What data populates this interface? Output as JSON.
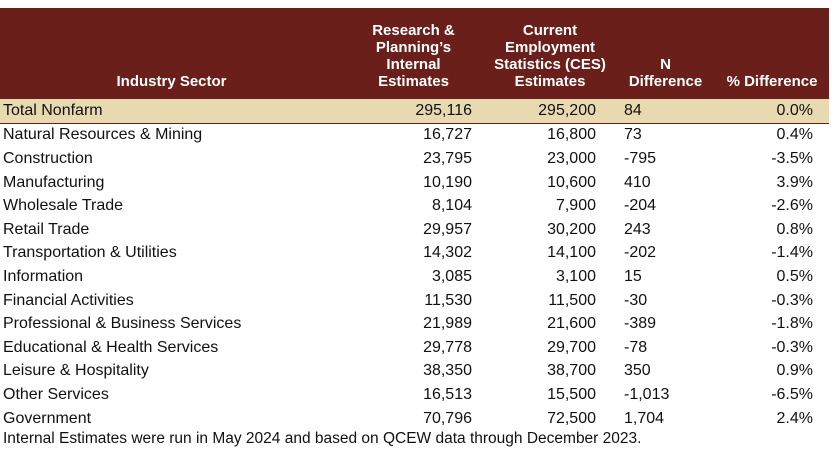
{
  "chart_data": {
    "type": "table",
    "columns": [
      "Industry Sector",
      "Research & Planning’s Internal Estimates",
      "Current Employment Statistics (CES) Estimates",
      "N Difference",
      "% Difference"
    ],
    "rows": [
      [
        "Total Nonfarm",
        "295,116",
        "295,200",
        "84",
        "0.0%"
      ],
      [
        "Natural Resources & Mining",
        "16,727",
        "16,800",
        "73",
        "0.4%"
      ],
      [
        "Construction",
        "23,795",
        "23,000",
        "-795",
        "-3.5%"
      ],
      [
        "Manufacturing",
        "10,190",
        "10,600",
        "410",
        "3.9%"
      ],
      [
        "Wholesale Trade",
        "8,104",
        "7,900",
        "-204",
        "-2.6%"
      ],
      [
        "Retail Trade",
        "29,957",
        "30,200",
        "243",
        "0.8%"
      ],
      [
        "Transportation & Utilities",
        "14,302",
        "14,100",
        "-202",
        "-1.4%"
      ],
      [
        "Information",
        "3,085",
        "3,100",
        "15",
        "0.5%"
      ],
      [
        "Financial Activities",
        "11,530",
        "11,500",
        "-30",
        "-0.3%"
      ],
      [
        "Professional & Business Services",
        "21,989",
        "21,600",
        "-389",
        "-1.8%"
      ],
      [
        "Educational & Health Services",
        "29,778",
        "29,700",
        "-78",
        "-0.3%"
      ],
      [
        "Leisure & Hospitality",
        "38,350",
        "38,700",
        "350",
        "0.9%"
      ],
      [
        "Other Services",
        "16,513",
        "15,500",
        "-1,013",
        "-6.5%"
      ],
      [
        "Government",
        "70,796",
        "72,500",
        "1,704",
        "2.4%"
      ]
    ],
    "highlight_row": "Total Nonfarm"
  },
  "colors": {
    "header_bg": "#6b1f1a",
    "header_text": "#ffffff",
    "highlight_bg": "#e7d9b0"
  },
  "footnote": "Internal Estimates were run in May 2024 and based on QCEW data through December 2023."
}
